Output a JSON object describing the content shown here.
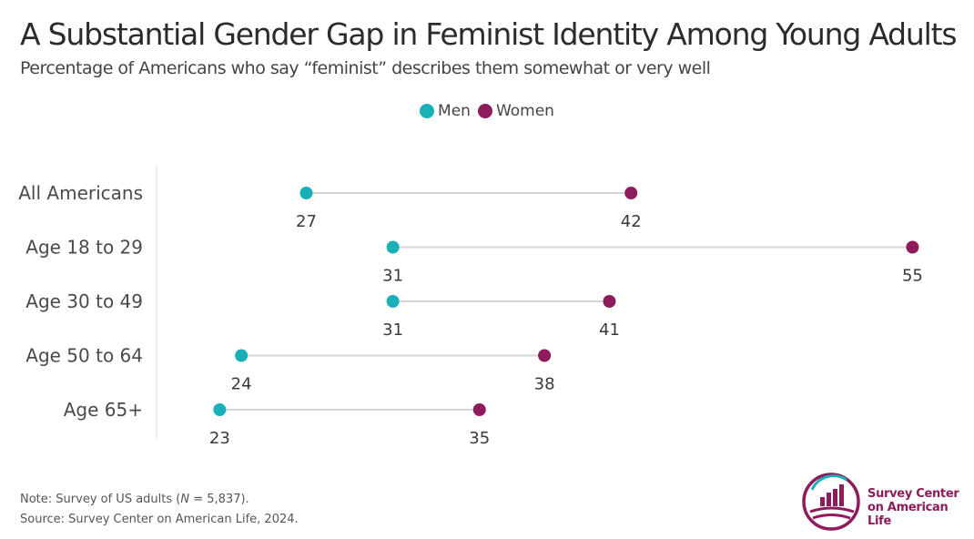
{
  "chart_data": {
    "type": "dumbbell",
    "title": "A Substantial Gender Gap in Feminist Identity Among Young Adults",
    "subtitle": "Percentage of Americans who say “feminist” describes them somewhat or very well",
    "categories": [
      "All Americans",
      "Age 18 to 29",
      "Age 30 to 49",
      "Age 50 to 64",
      "Age 65+"
    ],
    "series": [
      {
        "name": "Men",
        "color": "#1ab0b8",
        "values": [
          27,
          31,
          31,
          24,
          23
        ]
      },
      {
        "name": "Women",
        "color": "#8e1b5b",
        "values": [
          42,
          55,
          41,
          38,
          35
        ]
      }
    ],
    "xlim": [
      20,
      57
    ],
    "legend": "top-center",
    "grid": false
  },
  "footer": {
    "note_prefix": "Note: Survey of US adults (",
    "note_n": "N",
    "note_suffix": " = 5,837).",
    "source": "Source: Survey Center on American Life, 2024."
  },
  "logo": {
    "line1": "Survey Center",
    "line2": "on American Life",
    "color": "#8e1b5b",
    "accent": "#1ab0b8"
  }
}
